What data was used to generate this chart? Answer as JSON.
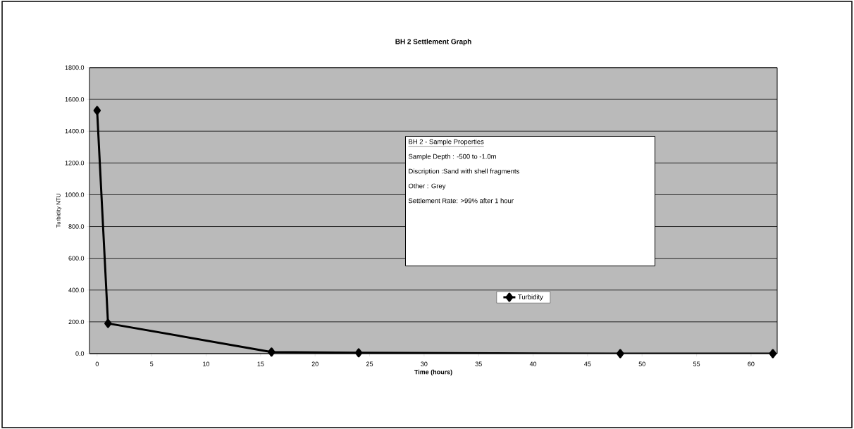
{
  "chart_data": {
    "type": "line",
    "title": "BH 2 Settlement Graph",
    "xlabel": "Time (hours)",
    "ylabel": "Turbidity NTU",
    "x": [
      0,
      1,
      16,
      24,
      48,
      62
    ],
    "series": [
      {
        "name": "Turbidity",
        "color": "#000000",
        "values": [
          1530,
          190,
          10,
          5,
          0,
          0
        ]
      }
    ],
    "xlim": [
      -0.7,
      62.4
    ],
    "xticks": [
      0,
      5,
      10,
      15,
      20,
      25,
      30,
      35,
      40,
      45,
      50,
      55,
      60
    ],
    "ylim": [
      0,
      1800
    ],
    "yticks": [
      {
        "value": 0,
        "label": "0.0"
      },
      {
        "value": 200,
        "label": "200.0"
      },
      {
        "value": 400,
        "label": "400.0"
      },
      {
        "value": 600,
        "label": "600.0"
      },
      {
        "value": 800,
        "label": "800.0"
      },
      {
        "value": 1000,
        "label": "1000.0"
      },
      {
        "value": 1200,
        "label": "1200.0"
      },
      {
        "value": 1400,
        "label": "1400.0"
      },
      {
        "value": 1600,
        "label": "1600.0"
      },
      {
        "value": 1800,
        "label": "1800.0"
      }
    ],
    "annotations": [
      "BH 2 - Sample Properties",
      "Sample Depth : -500 to -1.0m",
      "Discription :Sand with shell fragments",
      "Other : Grey",
      "Settlement Rate: >99% after 1 hour"
    ],
    "grid": "y",
    "legend": "center",
    "marker": "diamond",
    "line_style": "solid"
  }
}
